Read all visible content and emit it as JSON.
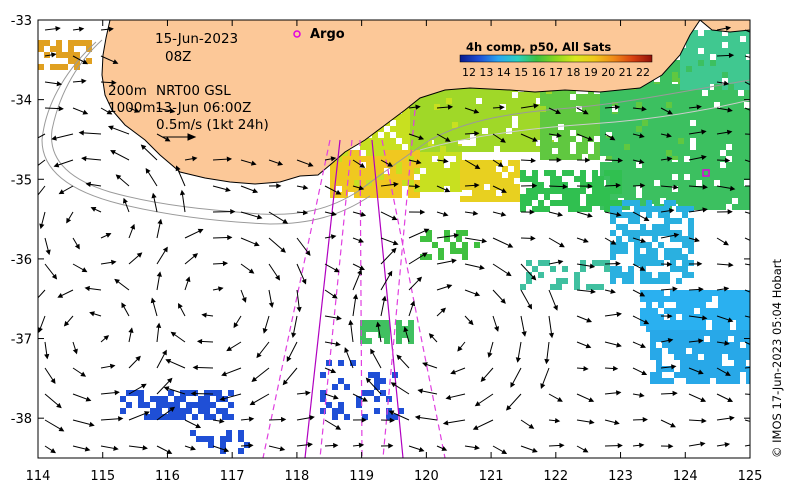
{
  "map": {
    "date_label": "15-Jun-2023",
    "hour_label": "08Z",
    "contour_label_1": "200m",
    "contour_label_2": "1000m",
    "model_label": "NRT00 GSL",
    "model_time": "13-Jun 06:00Z",
    "vector_scale_label": "0.5m/s (1kt 24h)",
    "argo_label": "Argo",
    "colorbar_title": "4h comp, p50, All Sats",
    "colorbar_ticks": [
      "12",
      "13",
      "14",
      "15",
      "16",
      "17",
      "18",
      "19",
      "20",
      "21",
      "22"
    ],
    "colorbar_range": [
      12,
      22
    ],
    "credit": "© IMOS 17-Jun-2023 05:04 Hobart",
    "x_ticks": [
      "114",
      "115",
      "116",
      "117",
      "118",
      "119",
      "120",
      "121",
      "122",
      "123",
      "124",
      "125"
    ],
    "y_ticks": [
      "-33",
      "-34",
      "-35",
      "-36",
      "-37",
      "-38"
    ],
    "lon_range": [
      114,
      125
    ],
    "lat_range": [
      -38.5,
      -33
    ],
    "colors": {
      "land": "#fcc898",
      "track_solid": "#b000c0",
      "track_dashed": "#e040e0",
      "argo_marker": "#e000e0",
      "arrow": "#000000"
    }
  }
}
